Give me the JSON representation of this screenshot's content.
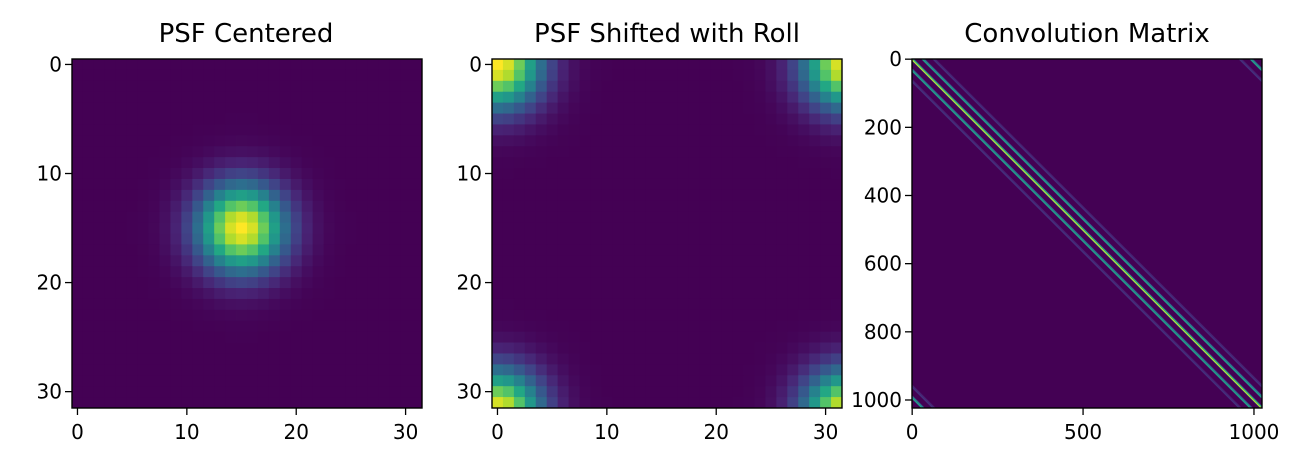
{
  "chart_data": [
    {
      "type": "heatmap",
      "title": "PSF Centered",
      "grid_size": 32,
      "colormap": "viridis",
      "xticks": [
        0,
        10,
        20,
        30
      ],
      "yticks": [
        0,
        10,
        20,
        30
      ],
      "xlim": [
        -0.5,
        31.5
      ],
      "ylim": [
        31.5,
        -0.5
      ],
      "psf": {
        "center": [
          15,
          15
        ],
        "sigma": 2.8
      },
      "grid": false
    },
    {
      "type": "heatmap",
      "title": "PSF Shifted with Roll",
      "grid_size": 32,
      "colormap": "viridis",
      "xticks": [
        0,
        10,
        20,
        30
      ],
      "yticks": [
        0,
        10,
        20,
        30
      ],
      "xlim": [
        -0.5,
        31.5
      ],
      "ylim": [
        31.5,
        -0.5
      ],
      "psf": {
        "center": [
          0,
          0
        ],
        "sigma": 2.8,
        "wrap": true
      },
      "grid": false
    },
    {
      "type": "heatmap",
      "title": "Convolution Matrix",
      "size": 1024,
      "colormap": "viridis",
      "xticks": [
        0,
        500,
        1000
      ],
      "yticks": [
        0,
        200,
        400,
        600,
        800,
        1000
      ],
      "xlim": [
        -0.5,
        1023.5
      ],
      "ylim": [
        1023.5,
        -0.5
      ],
      "main_diagonal_offsets": [
        0,
        32,
        -32,
        64,
        -64,
        96,
        -96,
        128,
        -128
      ],
      "wrap_offsets": [
        992,
        -992,
        960,
        -960,
        928,
        -928,
        896,
        -896
      ],
      "grid": false
    }
  ]
}
